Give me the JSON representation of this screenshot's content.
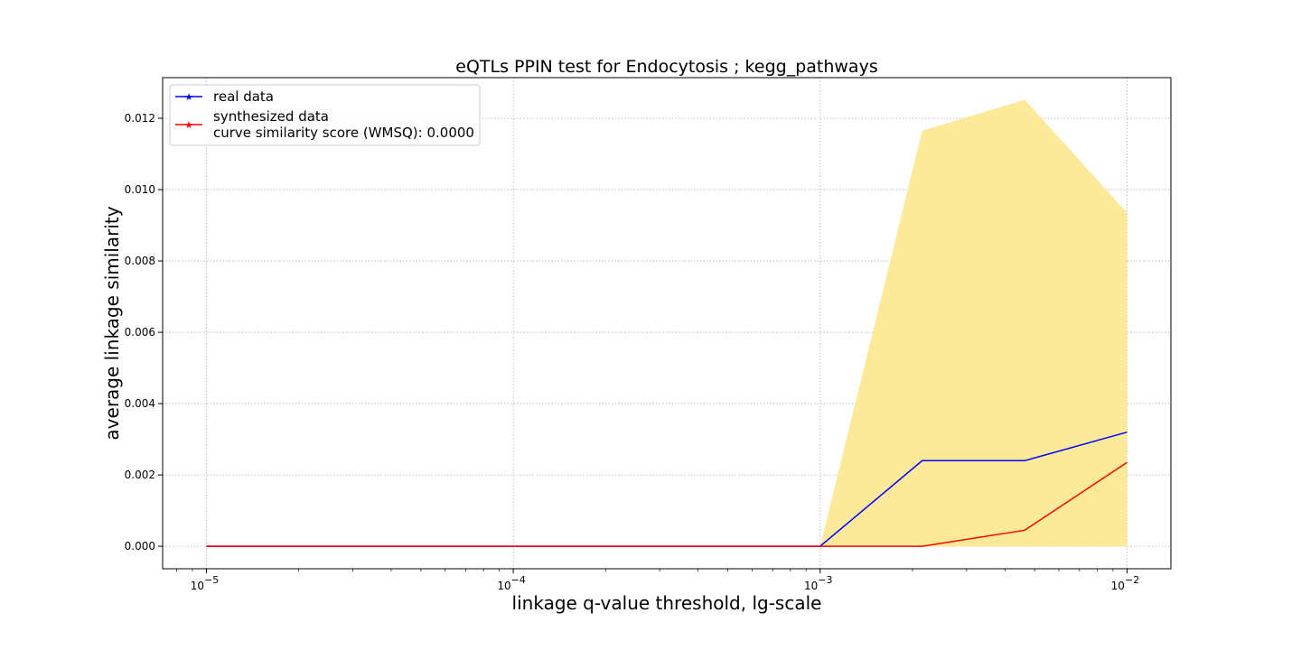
{
  "chart_data": {
    "type": "line",
    "title": "eQTLs PPIN test for Endocytosis ; kegg_pathways",
    "xlabel": "linkage q-value threshold, lg-scale",
    "ylabel": "average linkage similarity",
    "xscale": "log",
    "xlim": [
      7.2e-06,
      0.0139
    ],
    "ylim": [
      -0.00063,
      0.01314
    ],
    "grid": true,
    "legend_position": "upper-left",
    "x_ticks": [
      {
        "value": 1e-05,
        "base": "10",
        "exp": "−5"
      },
      {
        "value": 0.0001,
        "base": "10",
        "exp": "−4"
      },
      {
        "value": 0.001,
        "base": "10",
        "exp": "−3"
      },
      {
        "value": 0.01,
        "base": "10",
        "exp": "−2"
      }
    ],
    "y_ticks": [
      "0.000",
      "0.002",
      "0.004",
      "0.006",
      "0.008",
      "0.010",
      "0.012"
    ],
    "series": [
      {
        "name": "real data",
        "color": "#0000ff",
        "x": [
          1e-05,
          0.0001,
          0.001,
          0.00215,
          0.00464,
          0.01
        ],
        "y": [
          0.0,
          0.0,
          0.0,
          0.0024,
          0.0024,
          0.0032
        ]
      },
      {
        "name": "synthesized data",
        "color": "#ff0000",
        "x": [
          1e-05,
          0.0001,
          0.001,
          0.00215,
          0.00464,
          0.01
        ],
        "y": [
          0.0,
          0.0,
          0.0,
          0.0,
          0.00045,
          0.00235
        ]
      }
    ],
    "band": {
      "color": "#fde99a",
      "x": [
        1e-05,
        0.0001,
        0.001,
        0.00215,
        0.00464,
        0.01
      ],
      "lower": [
        0.0,
        0.0,
        0.0,
        0.0,
        0.0,
        0.0
      ],
      "upper": [
        0.0,
        0.0,
        0.0,
        0.01165,
        0.01252,
        0.00935
      ]
    },
    "legend_extra_line": "curve similarity score (WMSQ): 0.0000"
  }
}
